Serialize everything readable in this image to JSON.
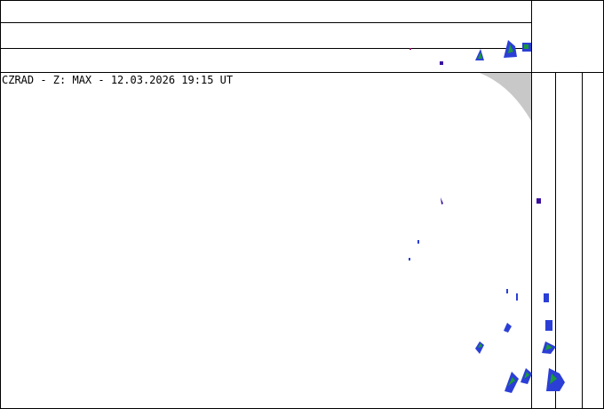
{
  "caption": "CZRAD - Z: MAX - 12.03.2026 19:15 UT"
}
